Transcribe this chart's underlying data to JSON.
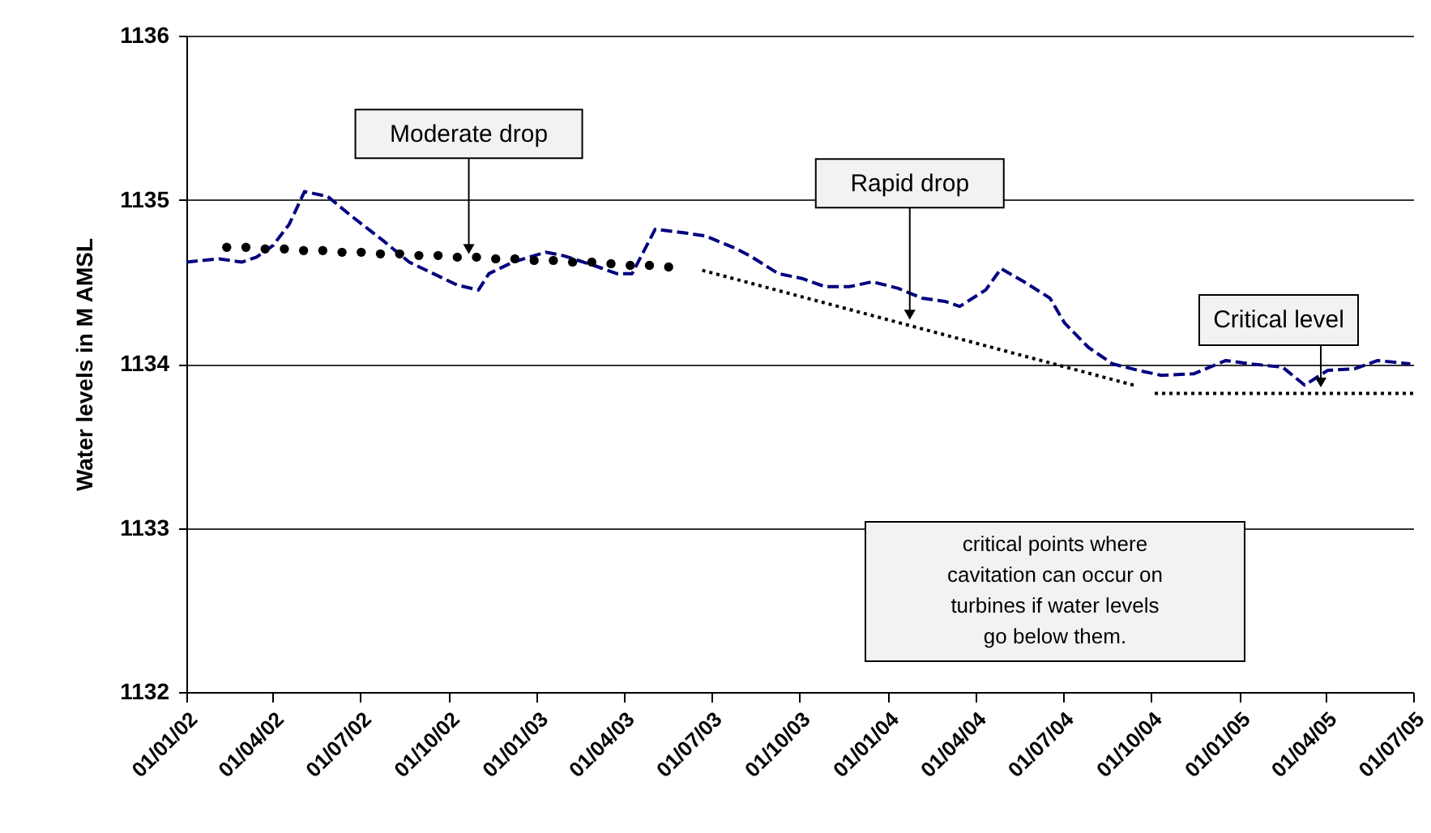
{
  "chart_data": {
    "type": "line",
    "ylabel": "Water levels in M AMSL",
    "xlim": [
      "2002-01-01",
      "2005-07-01"
    ],
    "xticks": [
      {
        "value": "2002-01-01",
        "label": "01/01/02"
      },
      {
        "value": "2002-04-01",
        "label": "01/04/02"
      },
      {
        "value": "2002-07-01",
        "label": "01/07/02"
      },
      {
        "value": "2002-10-01",
        "label": "01/10/02"
      },
      {
        "value": "2003-01-01",
        "label": "01/01/03"
      },
      {
        "value": "2003-04-01",
        "label": "01/04/03"
      },
      {
        "value": "2003-07-01",
        "label": "01/07/03"
      },
      {
        "value": "2003-10-01",
        "label": "01/10/03"
      },
      {
        "value": "2004-01-01",
        "label": "01/01/04"
      },
      {
        "value": "2004-04-01",
        "label": "01/04/04"
      },
      {
        "value": "2004-07-01",
        "label": "01/07/04"
      },
      {
        "value": "2004-10-01",
        "label": "01/10/04"
      },
      {
        "value": "2005-01-01",
        "label": "01/01/05"
      },
      {
        "value": "2005-04-01",
        "label": "01/04/05"
      },
      {
        "value": "2005-07-01",
        "label": "01/07/05"
      }
    ],
    "ylim": [
      1132,
      1136
    ],
    "yticks": [
      1132,
      1133,
      1134,
      1135,
      1136
    ],
    "grid": "y",
    "series": [
      {
        "color": "#000080",
        "line_style": "dashed",
        "x": [
          "2002-01-01",
          "2002-02-04",
          "2002-02-28",
          "2002-03-15",
          "2002-04-01",
          "2002-04-18",
          "2002-05-04",
          "2002-05-28",
          "2002-06-22",
          "2002-07-25",
          "2002-08-21",
          "2002-09-15",
          "2002-10-10",
          "2002-11-01",
          "2002-11-12",
          "2002-12-07",
          "2003-01-10",
          "2003-01-28",
          "2003-03-01",
          "2003-03-25",
          "2003-04-10",
          "2003-05-04",
          "2003-06-01",
          "2003-06-25",
          "2003-07-28",
          "2003-08-13",
          "2003-09-09",
          "2003-10-04",
          "2003-10-28",
          "2003-11-22",
          "2003-12-16",
          "2004-01-12",
          "2004-02-06",
          "2004-03-01",
          "2004-03-16",
          "2004-04-12",
          "2004-04-28",
          "2004-05-22",
          "2004-06-18",
          "2004-07-03",
          "2004-07-28",
          "2004-08-22",
          "2004-09-18",
          "2004-10-12",
          "2004-11-15",
          "2004-12-18",
          "2005-01-12",
          "2005-02-15",
          "2005-03-10",
          "2005-04-03",
          "2005-05-01",
          "2005-05-25",
          "2005-06-28"
        ],
        "values": [
          1134.62,
          1134.64,
          1134.62,
          1134.65,
          1134.72,
          1134.85,
          1135.05,
          1135.02,
          1134.9,
          1134.75,
          1134.62,
          1134.55,
          1134.48,
          1134.45,
          1134.55,
          1134.62,
          1134.68,
          1134.66,
          1134.6,
          1134.55,
          1134.55,
          1134.82,
          1134.8,
          1134.78,
          1134.7,
          1134.65,
          1134.55,
          1134.52,
          1134.47,
          1134.47,
          1134.5,
          1134.46,
          1134.4,
          1134.38,
          1134.35,
          1134.45,
          1134.58,
          1134.5,
          1134.4,
          1134.25,
          1134.1,
          1134.0,
          1133.96,
          1133.93,
          1133.94,
          1134.02,
          1134.0,
          1133.98,
          1133.87,
          1133.96,
          1133.97,
          1134.02,
          1134.0
        ]
      },
      {
        "type": "scatter",
        "color": "#000000",
        "marker": "circle",
        "x": [
          "2002-02-12",
          "2002-03-04",
          "2002-03-24",
          "2002-04-13",
          "2002-05-03",
          "2002-05-23",
          "2002-06-12",
          "2002-07-02",
          "2002-07-22",
          "2002-08-11",
          "2002-08-31",
          "2002-09-20",
          "2002-10-10",
          "2002-10-30",
          "2002-11-19",
          "2002-12-09",
          "2002-12-29",
          "2003-01-18",
          "2003-02-07",
          "2003-02-27",
          "2003-03-19",
          "2003-04-08",
          "2003-04-28",
          "2003-05-18"
        ],
        "values": [
          1134.71,
          1134.71,
          1134.7,
          1134.7,
          1134.69,
          1134.69,
          1134.68,
          1134.68,
          1134.67,
          1134.67,
          1134.66,
          1134.66,
          1134.65,
          1134.65,
          1134.64,
          1134.64,
          1134.63,
          1134.63,
          1134.62,
          1134.62,
          1134.61,
          1134.6,
          1134.6,
          1134.59
        ]
      },
      {
        "type": "line",
        "color": "#000000",
        "line_style": "dotted",
        "x": [
          "2003-06-22",
          "2004-09-13"
        ],
        "values": [
          1134.57,
          1133.87
        ]
      },
      {
        "type": "line",
        "color": "#000000",
        "line_style": "dotted",
        "x": [
          "2004-10-05",
          "2005-07-01"
        ],
        "values": [
          1133.82,
          1133.82
        ]
      }
    ],
    "annotations": [
      {
        "text": "Moderate drop",
        "x": "2002-10-22",
        "y": 1134.66
      },
      {
        "text": "Rapid drop",
        "x": "2004-01-24",
        "y": 1134.26
      },
      "Critical level",
      "critical points where cavitation can occur on turbines if water levels go below them."
    ]
  }
}
